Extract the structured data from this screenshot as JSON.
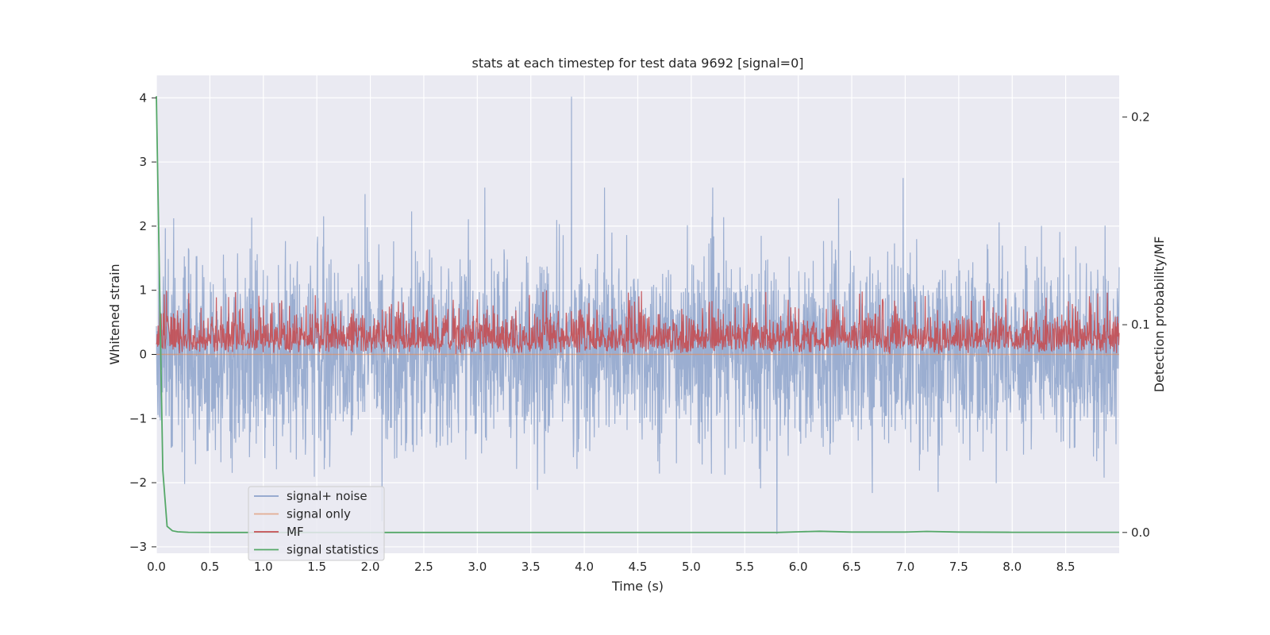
{
  "chart_data": {
    "type": "line",
    "title": "stats at each timestep for test data 9692 [signal=0]",
    "xlabel": "Time (s)",
    "ylabel": "Whitened strain",
    "y2label": "Detection probability/MF",
    "xlim": [
      0,
      9.0
    ],
    "ylim": [
      -3.1,
      4.35
    ],
    "y2lim": [
      -0.01,
      0.22
    ],
    "xticks": [
      "0.0",
      "0.5",
      "1.0",
      "1.5",
      "2.0",
      "2.5",
      "3.0",
      "3.5",
      "4.0",
      "4.5",
      "5.0",
      "5.5",
      "6.0",
      "6.5",
      "7.0",
      "7.5",
      "8.0",
      "8.5"
    ],
    "yticks": [
      "−3",
      "−2",
      "−1",
      "0",
      "1",
      "2",
      "3",
      "4"
    ],
    "y2ticks": [
      "0.0",
      "0.1",
      "0.2"
    ],
    "grid": true,
    "legend_position": "lower-left",
    "series": [
      {
        "name": "signal+ noise",
        "axis": "left",
        "color": "#4c72b0",
        "description_values": "dense noise trace, mostly within [-2, 2.5]",
        "peaks": [
          {
            "x": 3.88,
            "y": 4.02
          },
          {
            "x": 5.8,
            "y": -2.8
          },
          {
            "x": 6.98,
            "y": 2.75
          },
          {
            "x": 1.95,
            "y": 2.5
          },
          {
            "x": 4.19,
            "y": 2.6
          }
        ]
      },
      {
        "name": "signal only",
        "axis": "left",
        "color": "#dd8452",
        "x": [
          0,
          9.0
        ],
        "y": [
          0,
          0
        ]
      },
      {
        "name": "MF",
        "axis": "left",
        "color": "#c44e52",
        "description_values": "band oscillating between 0 and ~0.7, occasional peaks to ~1.0"
      },
      {
        "name": "signal statistics",
        "axis": "right",
        "color": "#55a868",
        "x": [
          0.0,
          0.03,
          0.06,
          0.1,
          0.15,
          0.2,
          0.3,
          0.5,
          1.0,
          2.0,
          3.0,
          4.0,
          5.0,
          5.8,
          6.0,
          6.2,
          6.5,
          7.0,
          7.2,
          7.5,
          8.0,
          9.0
        ],
        "y": [
          0.21,
          0.12,
          0.03,
          0.003,
          0.0008,
          0.0003,
          0.0001,
          0.0,
          0.0,
          0.0,
          0.0,
          0.0,
          0.0,
          0.0,
          0.0003,
          0.0006,
          0.0002,
          0.0002,
          0.0005,
          0.0002,
          0.0001,
          0.0001
        ]
      }
    ]
  }
}
